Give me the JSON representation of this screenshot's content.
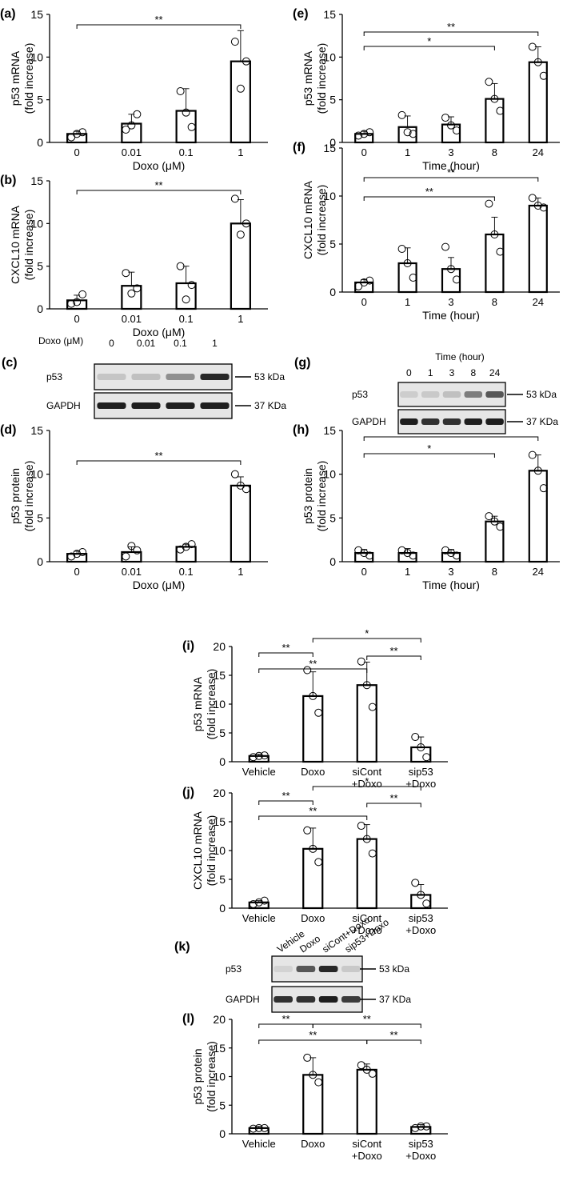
{
  "chart_data": [
    {
      "panel_label": "(a)",
      "type": "bar",
      "ylabel": [
        "p53 mRNA",
        "(fold increase)"
      ],
      "xlabel": "Doxo (μM)",
      "categories": [
        "0",
        "0.01",
        "0.1",
        "1"
      ],
      "values": [
        1.0,
        2.2,
        3.7,
        9.5
      ],
      "errors": [
        0.3,
        1.1,
        2.6,
        3.6
      ],
      "points": [
        [
          0.6,
          1.2,
          1.0
        ],
        [
          1.5,
          3.3,
          2.0
        ],
        [
          6.0,
          1.8,
          3.5
        ],
        [
          11.8,
          9.5,
          6.3
        ]
      ],
      "ylim": [
        0,
        15
      ],
      "yticks": [
        0,
        5,
        10,
        15
      ],
      "significance": [
        {
          "from": 0,
          "to": 3,
          "label": "**"
        }
      ]
    },
    {
      "panel_label": "(b)",
      "type": "bar",
      "ylabel": [
        "CXCL10 mRNA",
        "(fold increase)"
      ],
      "xlabel": "Doxo (μM)",
      "categories": [
        "0",
        "0.01",
        "0.1",
        "1"
      ],
      "values": [
        1.0,
        2.7,
        3.0,
        10.0
      ],
      "errors": [
        0.6,
        1.6,
        2.0,
        2.8
      ],
      "points": [
        [
          0.6,
          1.7,
          0.8
        ],
        [
          4.2,
          2.4,
          1.8
        ],
        [
          5.0,
          2.8,
          1.1
        ],
        [
          12.9,
          10.0,
          8.7
        ]
      ],
      "ylim": [
        0,
        15
      ],
      "yticks": [
        0,
        5,
        10,
        15
      ],
      "significance": [
        {
          "from": 0,
          "to": 3,
          "label": "**"
        }
      ]
    },
    {
      "panel_label": "(d)",
      "type": "bar",
      "ylabel": [
        "p53 protein",
        "(fold increase)"
      ],
      "xlabel": "Doxo (μM)",
      "categories": [
        "0",
        "0.01",
        "0.1",
        "1"
      ],
      "values": [
        0.9,
        1.1,
        1.7,
        8.7
      ],
      "errors": [
        0.3,
        0.6,
        0.3,
        1.0
      ],
      "points": [
        [
          0.6,
          1.1,
          0.9
        ],
        [
          0.6,
          1.3,
          1.8
        ],
        [
          1.4,
          2.0,
          1.7
        ],
        [
          10.0,
          8.3,
          8.7
        ]
      ],
      "ylim": [
        0,
        15
      ],
      "yticks": [
        0,
        5,
        10,
        15
      ],
      "significance": [
        {
          "from": 0,
          "to": 3,
          "label": "**"
        }
      ]
    },
    {
      "panel_label": "(e)",
      "type": "bar",
      "ylabel": [
        "p53 mRNA",
        "(fold increase)"
      ],
      "xlabel": "Time (hour)",
      "categories": [
        "0",
        "1",
        "3",
        "8",
        "24"
      ],
      "values": [
        1.0,
        1.8,
        2.1,
        5.1,
        9.4
      ],
      "errors": [
        0.3,
        1.3,
        0.9,
        1.8,
        1.8
      ],
      "points": [
        [
          0.8,
          1.2,
          1.0
        ],
        [
          3.2,
          1.0,
          1.2
        ],
        [
          2.9,
          1.4,
          2.0
        ],
        [
          7.1,
          3.7,
          5.1
        ],
        [
          11.2,
          7.8,
          9.4
        ]
      ],
      "ylim": [
        0,
        15
      ],
      "yticks": [
        0,
        5,
        10,
        15
      ],
      "significance": [
        {
          "from": 0,
          "to": 4,
          "label": "**"
        },
        {
          "from": 0,
          "to": 3,
          "label": "*"
        }
      ]
    },
    {
      "panel_label": "(f)",
      "type": "bar",
      "ylabel": [
        "CXCL10 mRNA",
        "(fold increase)"
      ],
      "xlabel": "Time (hour)",
      "categories": [
        "0",
        "1",
        "3",
        "8",
        "24"
      ],
      "values": [
        1.0,
        3.0,
        2.4,
        6.0,
        9.0
      ],
      "errors": [
        0.3,
        1.6,
        1.2,
        1.8,
        0.8
      ],
      "points": [
        [
          0.6,
          1.2,
          1.0
        ],
        [
          4.5,
          1.5,
          3.0
        ],
        [
          4.7,
          1.3,
          2.4
        ],
        [
          9.2,
          4.2,
          6.0
        ],
        [
          9.8,
          8.8,
          9.0
        ]
      ],
      "ylim": [
        0,
        15
      ],
      "yticks": [
        0,
        5,
        10,
        15
      ],
      "significance": [
        {
          "from": 0,
          "to": 4,
          "label": "**"
        },
        {
          "from": 0,
          "to": 3,
          "label": "**"
        }
      ]
    },
    {
      "panel_label": "(h)",
      "type": "bar",
      "ylabel": [
        "p53 protein",
        "(fold increase)"
      ],
      "xlabel": "Time (hour)",
      "categories": [
        "0",
        "1",
        "3",
        "8",
        "24"
      ],
      "values": [
        1.0,
        1.0,
        1.0,
        4.6,
        10.4
      ],
      "errors": [
        0.4,
        0.5,
        0.4,
        0.6,
        1.8
      ],
      "points": [
        [
          1.3,
          0.7,
          1.0
        ],
        [
          1.3,
          0.7,
          1.0
        ],
        [
          1.3,
          0.7,
          1.0
        ],
        [
          5.2,
          4.0,
          4.6
        ],
        [
          12.2,
          8.4,
          10.4
        ]
      ],
      "ylim": [
        0,
        15
      ],
      "yticks": [
        0,
        5,
        10,
        15
      ],
      "significance": [
        {
          "from": 0,
          "to": 4,
          "label": "**"
        },
        {
          "from": 0,
          "to": 3,
          "label": "*"
        }
      ]
    },
    {
      "panel_label": "(i)",
      "type": "bar",
      "ylabel": [
        "p53 mRNA",
        "(fold increase)"
      ],
      "xlabel": "",
      "categories": [
        [
          "Vehicle"
        ],
        [
          "Doxo"
        ],
        [
          "siCont",
          "+Doxo"
        ],
        [
          "sip53",
          "+Doxo"
        ]
      ],
      "values": [
        1.0,
        11.4,
        13.3,
        2.5
      ],
      "errors": [
        0.3,
        4.2,
        4.0,
        1.8
      ],
      "points": [
        [
          0.8,
          1.1,
          1.0
        ],
        [
          15.9,
          8.5,
          11.4
        ],
        [
          17.4,
          9.5,
          13.3
        ],
        [
          4.3,
          0.8,
          2.5
        ]
      ],
      "ylim": [
        0,
        20
      ],
      "yticks": [
        0,
        5,
        10,
        15,
        20
      ],
      "significance": [
        {
          "from": 0,
          "to": 1,
          "label": "**"
        },
        {
          "from": 0,
          "to": 2,
          "label": "**"
        },
        {
          "from": 1,
          "to": 3,
          "label": "*"
        },
        {
          "from": 2,
          "to": 3,
          "label": "**"
        }
      ]
    },
    {
      "panel_label": "(j)",
      "type": "bar",
      "ylabel": [
        "CXCL10 mRNA",
        "(fold increase)"
      ],
      "xlabel": "",
      "categories": [
        [
          "Vehicle"
        ],
        [
          "Doxo"
        ],
        [
          "siCont",
          "+Doxo"
        ],
        [
          "sip53",
          "+Doxo"
        ]
      ],
      "values": [
        1.0,
        10.3,
        12.0,
        2.3
      ],
      "errors": [
        0.3,
        3.6,
        2.5,
        1.8
      ],
      "points": [
        [
          0.7,
          1.3,
          1.0
        ],
        [
          13.5,
          8.0,
          10.3
        ],
        [
          14.3,
          9.5,
          12.0
        ],
        [
          4.4,
          0.8,
          2.3
        ]
      ],
      "ylim": [
        0,
        20
      ],
      "yticks": [
        0,
        5,
        10,
        15,
        20
      ],
      "significance": [
        {
          "from": 0,
          "to": 1,
          "label": "**"
        },
        {
          "from": 0,
          "to": 2,
          "label": "**"
        },
        {
          "from": 1,
          "to": 3,
          "label": "*"
        },
        {
          "from": 2,
          "to": 3,
          "label": "**"
        }
      ]
    },
    {
      "panel_label": "(l)",
      "type": "bar",
      "ylabel": [
        "p53 protein",
        "(fold increase)"
      ],
      "xlabel": "",
      "categories": [
        [
          "Vehicle"
        ],
        [
          "Doxo"
        ],
        [
          "siCont",
          "+Doxo"
        ],
        [
          "sip53",
          "+Doxo"
        ]
      ],
      "values": [
        1.0,
        10.3,
        11.2,
        1.2
      ],
      "errors": [
        0.3,
        3.0,
        1.0,
        0.4
      ],
      "points": [
        [
          0.9,
          1.0,
          1.0
        ],
        [
          13.3,
          9.0,
          10.3
        ],
        [
          12.0,
          10.5,
          11.2
        ],
        [
          1.0,
          1.3,
          1.3
        ]
      ],
      "ylim": [
        0,
        20
      ],
      "yticks": [
        0,
        5,
        10,
        15,
        20
      ],
      "significance": [
        {
          "from": 0,
          "to": 1,
          "label": "**"
        },
        {
          "from": 0,
          "to": 2,
          "label": "**"
        },
        {
          "from": 1,
          "to": 3,
          "label": "**"
        },
        {
          "from": 2,
          "to": 3,
          "label": "**"
        }
      ]
    }
  ],
  "blots": [
    {
      "panel_label": "(c)",
      "header_label": "Doxo (μM)",
      "time_title": "",
      "lanes": [
        "0",
        "0.01",
        "0.1",
        "1"
      ],
      "rows": [
        {
          "label": "p53",
          "marker": "53 kDa",
          "intensity": [
            0.12,
            0.15,
            0.4,
            0.95
          ]
        },
        {
          "label": "GAPDH",
          "marker": "37 KDa",
          "intensity": [
            1.0,
            1.0,
            1.0,
            1.0
          ]
        }
      ]
    },
    {
      "panel_label": "(g)",
      "header_label": "",
      "time_title": "Time (hour)",
      "lanes": [
        "0",
        "1",
        "3",
        "8",
        "24"
      ],
      "rows": [
        {
          "label": "p53",
          "marker": "53 kDa",
          "intensity": [
            0.08,
            0.1,
            0.15,
            0.5,
            0.7
          ]
        },
        {
          "label": "GAPDH",
          "marker": "37 KDa",
          "intensity": [
            1.0,
            0.9,
            0.9,
            1.0,
            1.0
          ]
        }
      ]
    },
    {
      "panel_label": "(k)",
      "header_label": "",
      "time_title": "",
      "lanes": [
        "Vehicle",
        "Doxo",
        "siCont+Doxo",
        "sip53+Doxo"
      ],
      "rows": [
        {
          "label": "p53",
          "marker": "53 kDa",
          "intensity": [
            0.05,
            0.7,
            0.95,
            0.1
          ]
        },
        {
          "label": "GAPDH",
          "marker": "37 KDa",
          "intensity": [
            0.9,
            0.9,
            1.0,
            0.85
          ]
        }
      ]
    }
  ]
}
